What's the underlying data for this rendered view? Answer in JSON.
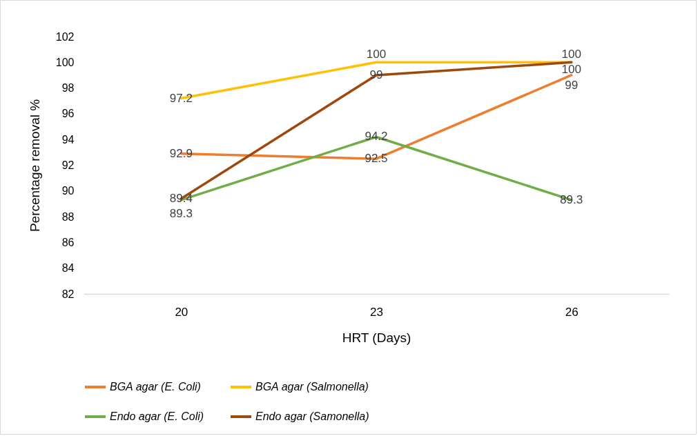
{
  "chart_data": {
    "type": "line",
    "xlabel": "HRT (Days)",
    "ylabel": "Percentage removal %",
    "categories": [
      "20",
      "23",
      "26"
    ],
    "series": [
      {
        "name": "BGA agar (E. Coli)",
        "color": "#ed7d31",
        "values": [
          92.9,
          92.5,
          99
        ]
      },
      {
        "name": "BGA agar (Salmonella)",
        "color": "#ffc000",
        "values": [
          97.2,
          100,
          100
        ]
      },
      {
        "name": "Endo agar (E. Coli)",
        "color": "#70ad47",
        "values": [
          89.3,
          94.2,
          89.3
        ]
      },
      {
        "name": "Endo agar (Samonella)",
        "color": "#9e480e",
        "values": [
          89.4,
          99,
          100
        ]
      }
    ],
    "ylim": [
      82,
      102
    ],
    "yticks": [
      82,
      84,
      86,
      88,
      90,
      92,
      94,
      96,
      98,
      100,
      102
    ],
    "grid": false,
    "legend": "bottom",
    "data_labels": true,
    "marker": "none",
    "line_style": "solid"
  }
}
